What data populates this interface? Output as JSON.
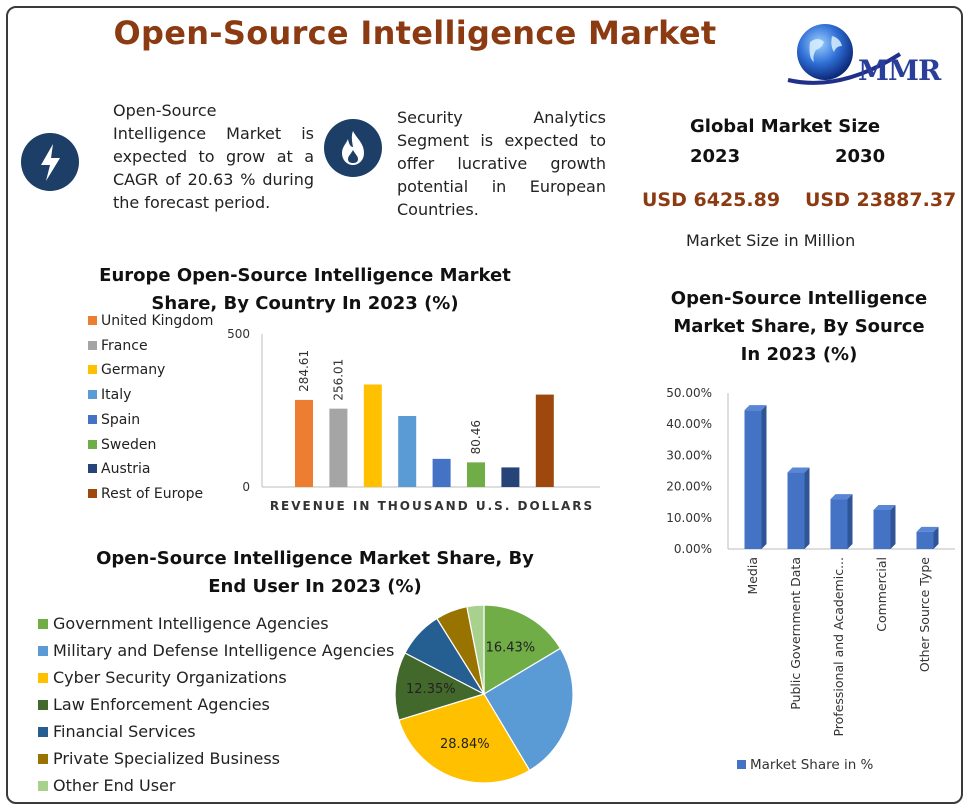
{
  "header": {
    "title": "Open-Source Intelligence Market",
    "logo_text": "MMR"
  },
  "info": {
    "cagr_text": "Open-Source Intelligence Market is expected to grow at a CAGR of 20.63 % during the forecast period.",
    "segment_text": "Security Analytics Segment is expected to offer lucrative growth potential in European Countries."
  },
  "global": {
    "title": "Global Market Size",
    "year_a": "2023",
    "year_b": "2030",
    "value_a": "USD 6425.89",
    "value_b": "USD 23887.37",
    "note": "Market Size in Million"
  },
  "colors": {
    "accent": "#8b3a12",
    "icon_bg": "#1d3e66"
  },
  "chart_data": [
    {
      "type": "bar",
      "title": "Europe Open-Source Intelligence Market Share, By Country In 2023 (%)",
      "xlabel": "REVENUE IN THOUSAND U.S. DOLLARS",
      "ylim": [
        0,
        500
      ],
      "y_ticks": [
        "500",
        "0"
      ],
      "legend_position": "left",
      "categories": [
        "United Kingdom",
        "France",
        "Germany",
        "Italy",
        "Spain",
        "Sweden",
        "Austria",
        "Rest of Europe"
      ],
      "values": [
        284.61,
        256.01,
        335,
        232,
        92,
        80.46,
        64,
        302
      ],
      "data_labels": [
        "284.61",
        "256.01",
        "",
        "",
        "",
        "80.46",
        "",
        ""
      ],
      "colors": [
        "#ed7d31",
        "#a5a5a5",
        "#ffc000",
        "#5b9bd5",
        "#4472c4",
        "#70ad47",
        "#264478",
        "#9e480e"
      ]
    },
    {
      "type": "bar",
      "title": "Open-Source Intelligence Market Share, By Source In 2023 (%)",
      "ylim": [
        0,
        50
      ],
      "y_ticks": [
        "50.00%",
        "40.00%",
        "30.00%",
        "20.00%",
        "10.00%",
        "0.00%"
      ],
      "categories": [
        "Media",
        "Public Government Data",
        "Professional and Academic...",
        "Commercial",
        "Other Source Type"
      ],
      "values": [
        44.5,
        24.5,
        16,
        12.5,
        5.5
      ],
      "series_name": "Market Share in %",
      "legend_position": "bottom",
      "color": "#4472c4"
    },
    {
      "type": "pie",
      "title": "Open-Source Intelligence Market Share, By End User In 2023 (%)",
      "legend_position": "left",
      "categories": [
        "Government Intelligence Agencies",
        "Military and Defense Intelligence Agencies",
        "Cyber Security Organizations",
        "Law Enforcement Agencies",
        "Financial Services",
        "Private Specialized Business",
        "Other End User"
      ],
      "values": [
        16.43,
        25.0,
        28.84,
        12.35,
        8.5,
        5.8,
        3.08
      ],
      "data_labels": [
        "16.43%",
        "",
        "28.84%",
        "12.35%",
        "",
        "",
        ""
      ],
      "colors": [
        "#70ad47",
        "#5b9bd5",
        "#ffc000",
        "#43682b",
        "#255e91",
        "#997300",
        "#a9d18e"
      ]
    }
  ]
}
